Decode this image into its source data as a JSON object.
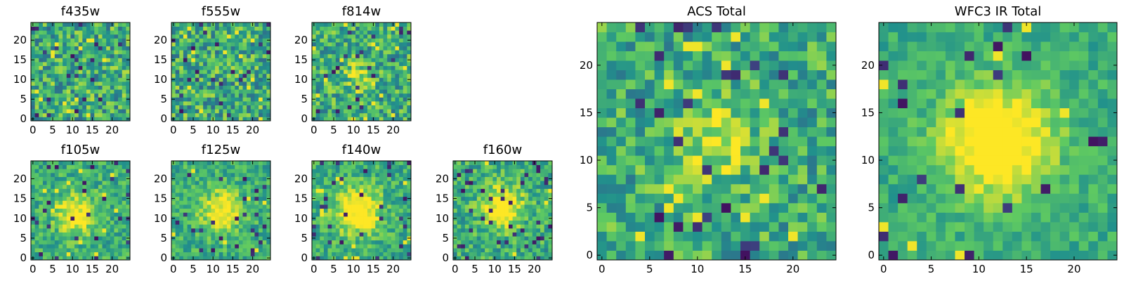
{
  "chart_data": [
    {
      "type": "heatmap",
      "title": "f435w",
      "size": 25,
      "peak": 0.0,
      "noise": 0.55,
      "seed": 11,
      "xticks": [
        "0",
        "5",
        "10",
        "15",
        "20"
      ],
      "yticks": [
        "0",
        "5",
        "10",
        "15",
        "20"
      ]
    },
    {
      "type": "heatmap",
      "title": "f555w",
      "size": 25,
      "peak": 0.0,
      "noise": 0.55,
      "seed": 23,
      "xticks": [
        "0",
        "5",
        "10",
        "15",
        "20"
      ],
      "yticks": [
        "0",
        "5",
        "10",
        "15",
        "20"
      ]
    },
    {
      "type": "heatmap",
      "title": "f814w",
      "size": 25,
      "peak": 0.25,
      "noise": 0.5,
      "seed": 37,
      "center": [
        11,
        11
      ],
      "sigma": 2.5,
      "xticks": [
        "0",
        "5",
        "10",
        "15",
        "20"
      ],
      "yticks": [
        "0",
        "5",
        "10",
        "15",
        "20"
      ]
    },
    {
      "type": "heatmap",
      "title": "f105w",
      "size": 25,
      "peak": 0.45,
      "noise": 0.35,
      "seed": 41,
      "center": [
        11,
        11
      ],
      "sigma": 3.5,
      "xticks": [
        "0",
        "5",
        "10",
        "15",
        "20"
      ],
      "yticks": [
        "0",
        "5",
        "10",
        "15",
        "20"
      ]
    },
    {
      "type": "heatmap",
      "title": "f125w",
      "size": 25,
      "peak": 0.45,
      "noise": 0.35,
      "seed": 53,
      "center": [
        12,
        12
      ],
      "sigma": 3.5,
      "xticks": [
        "0",
        "5",
        "10",
        "15",
        "20"
      ],
      "yticks": [
        "0",
        "5",
        "10",
        "15",
        "20"
      ]
    },
    {
      "type": "heatmap",
      "title": "f140w",
      "size": 25,
      "peak": 0.55,
      "noise": 0.35,
      "seed": 67,
      "center": [
        11,
        12
      ],
      "sigma": 4,
      "xticks": [
        "0",
        "5",
        "10",
        "15",
        "20"
      ],
      "yticks": [
        "0",
        "5",
        "10",
        "15",
        "20"
      ]
    },
    {
      "type": "heatmap",
      "title": "f160w",
      "size": 25,
      "peak": 0.55,
      "noise": 0.4,
      "seed": 71,
      "center": [
        12,
        13
      ],
      "sigma": 3.5,
      "xticks": [
        "0",
        "5",
        "10",
        "15",
        "20"
      ],
      "yticks": [
        "0",
        "5",
        "10",
        "15",
        "20"
      ]
    },
    {
      "type": "heatmap",
      "title": "ACS Total",
      "size": 25,
      "peak": 0.3,
      "noise": 0.45,
      "seed": 83,
      "center": [
        12,
        12
      ],
      "sigma": 3,
      "xticks": [
        "0",
        "5",
        "10",
        "15",
        "20"
      ],
      "yticks": [
        "0",
        "5",
        "10",
        "15",
        "20"
      ]
    },
    {
      "type": "heatmap",
      "title": "WFC3 IR Total",
      "size": 25,
      "peak": 0.6,
      "noise": 0.25,
      "seed": 97,
      "center": [
        12,
        12
      ],
      "sigma": 4,
      "xticks": [
        "0",
        "5",
        "10",
        "15",
        "20"
      ],
      "yticks": [
        "0",
        "5",
        "10",
        "15",
        "20"
      ]
    }
  ],
  "colors": {
    "colormap": [
      "#440154",
      "#3b528b",
      "#21918c",
      "#5ec962",
      "#fde725"
    ],
    "axis": "#000000",
    "background": "#ffffff"
  }
}
